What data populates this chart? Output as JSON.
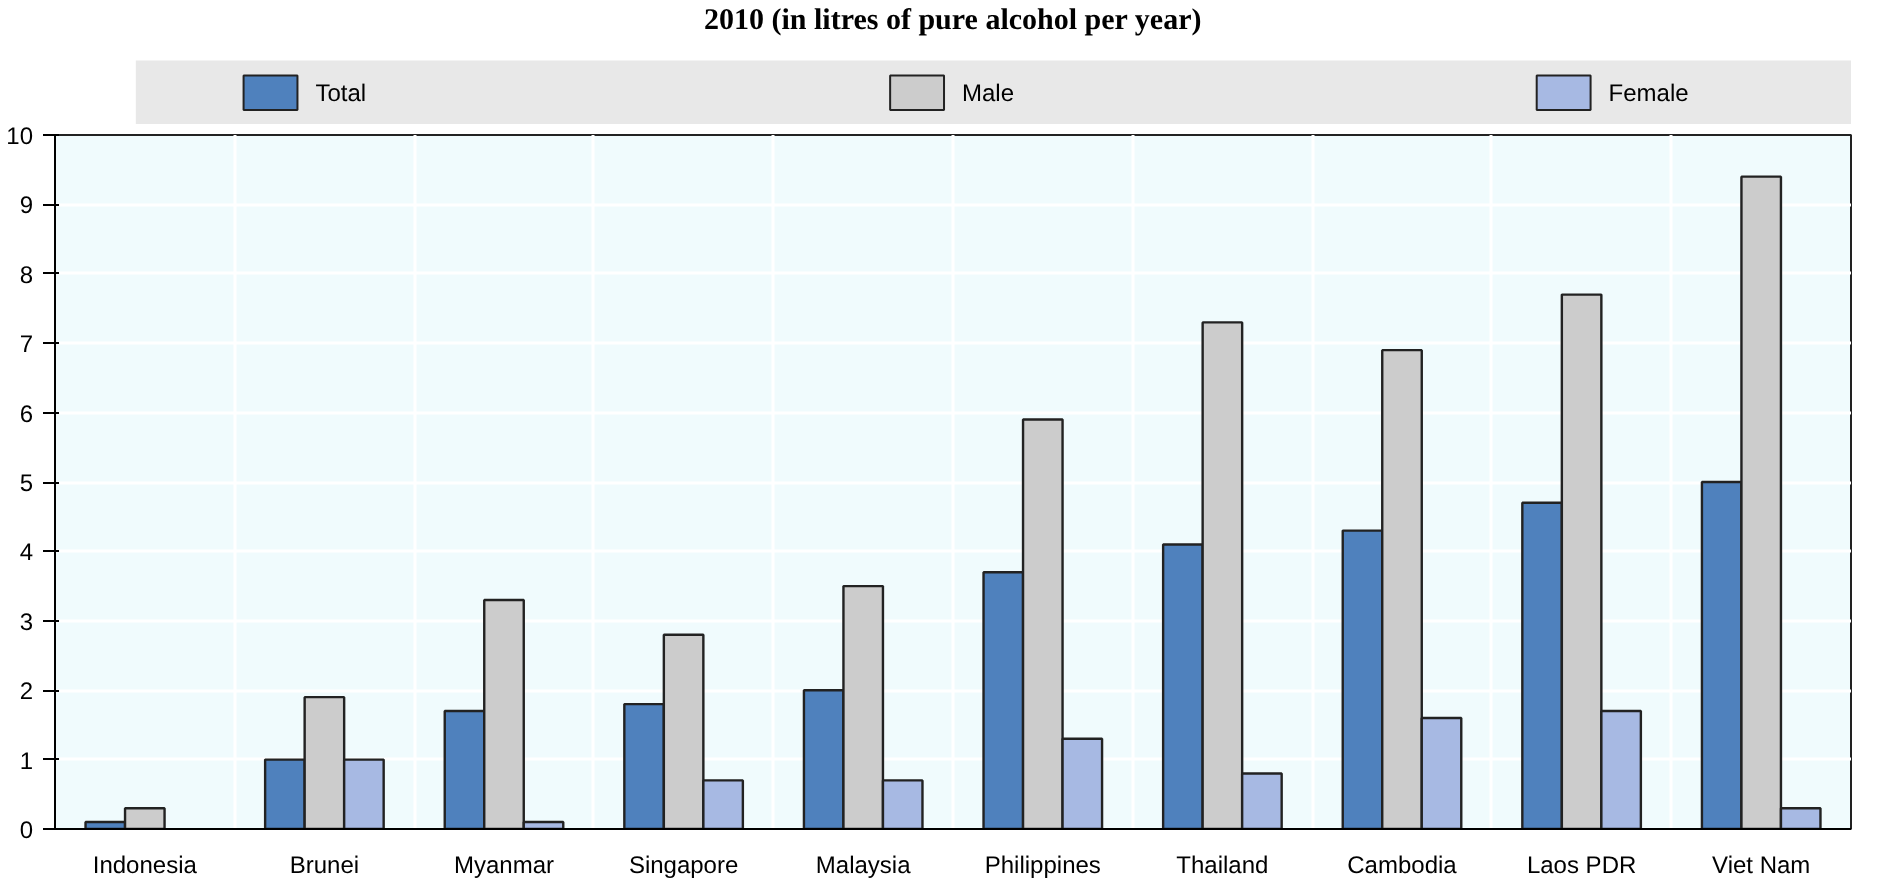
{
  "chart_data": {
    "type": "bar",
    "title": "2010 (in litres of pure alcohol per year)",
    "categories": [
      "Indonesia",
      "Brunei",
      "Myanmar",
      "Singapore",
      "Malaysia",
      "Philippines",
      "Thailand",
      "Cambodia",
      "Laos PDR",
      "Viet Nam"
    ],
    "series": [
      {
        "name": "Total",
        "color": "#4f81bd",
        "values": [
          0.1,
          1.0,
          1.7,
          1.8,
          2.0,
          3.7,
          4.1,
          4.3,
          4.7,
          5.0
        ]
      },
      {
        "name": "Male",
        "color": "#cccccc",
        "values": [
          0.3,
          1.9,
          3.3,
          2.8,
          3.5,
          5.9,
          7.3,
          6.9,
          7.7,
          9.4
        ]
      },
      {
        "name": "Female",
        "color": "#a7b9e3",
        "values": [
          null,
          1.0,
          0.1,
          0.7,
          0.7,
          1.3,
          0.8,
          1.6,
          1.7,
          0.3
        ]
      }
    ],
    "ylim": [
      0,
      10
    ],
    "yticks": [
      0,
      1,
      2,
      3,
      4,
      5,
      6,
      7,
      8,
      9,
      10
    ],
    "grid": true,
    "legend": "top"
  }
}
